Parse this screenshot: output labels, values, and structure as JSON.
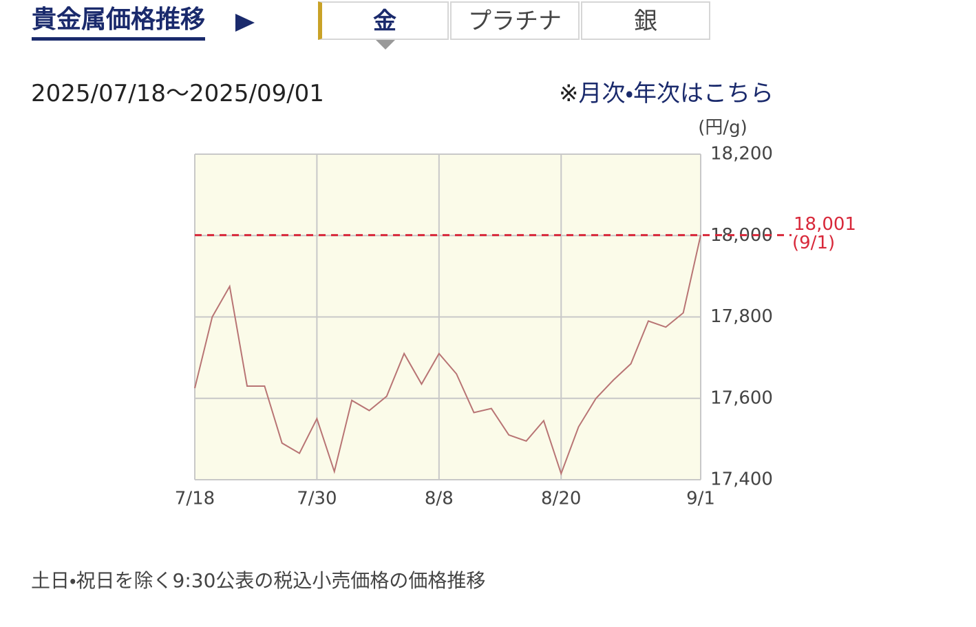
{
  "header": {
    "title": "貴金属価格推移"
  },
  "tabs": [
    {
      "label": "金",
      "selected": true
    },
    {
      "label": "プラチナ",
      "selected": false
    },
    {
      "label": "銀",
      "selected": false
    }
  ],
  "date_range": "2025/07/18〜2025/09/01",
  "link": {
    "mark": "※",
    "text": "月次・年次はこちら"
  },
  "chart_data": {
    "type": "line",
    "y_axis_label": "(円/g)",
    "categories": [
      "7/18",
      null,
      null,
      null,
      null,
      null,
      null,
      "7/30",
      null,
      null,
      null,
      null,
      null,
      null,
      "8/8",
      null,
      null,
      null,
      null,
      null,
      null,
      "8/20",
      null,
      null,
      null,
      null,
      null,
      null,
      null,
      "9/1"
    ],
    "values": [
      17625,
      17800,
      17875,
      17630,
      17630,
      17490,
      17465,
      17550,
      17420,
      17595,
      17570,
      17605,
      17710,
      17635,
      17710,
      17660,
      17565,
      17575,
      17510,
      17495,
      17545,
      17415,
      17530,
      17600,
      17645,
      17685,
      17790,
      17775,
      17810,
      18001
    ],
    "color": "#b87474",
    "ylim": [
      17400,
      18200
    ],
    "yticks": [
      {
        "value": 17400,
        "label": "17,400"
      },
      {
        "value": 17600,
        "label": "17,600"
      },
      {
        "value": 17800,
        "label": "17,800"
      },
      {
        "value": 18000,
        "label": "18,000"
      },
      {
        "value": 18200,
        "label": "18,200"
      }
    ],
    "grid": true,
    "reference_line": {
      "value": 18001,
      "label": "18,001",
      "date": "(9/1)",
      "color": "#d8283a"
    }
  },
  "footnote": "土日・祝日を除く9:30公表の税込小売価格の価格推移"
}
